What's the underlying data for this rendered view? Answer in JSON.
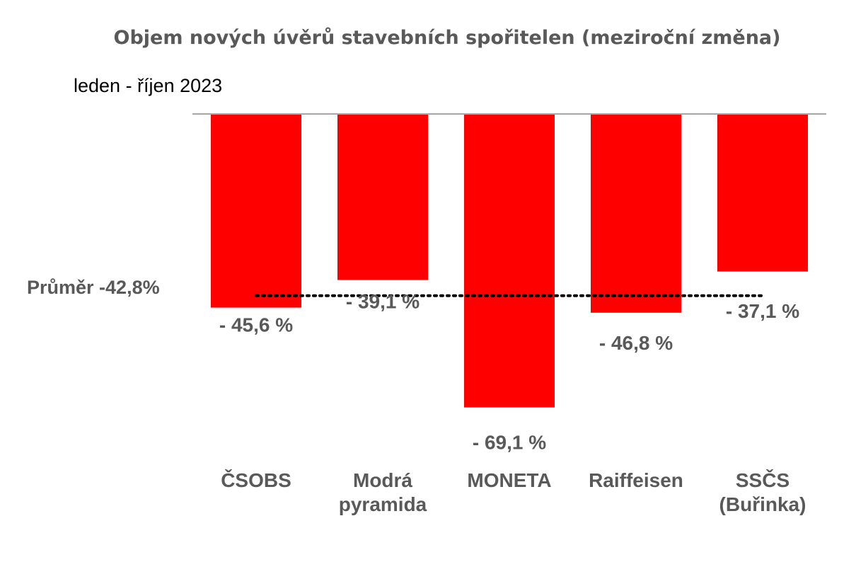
{
  "chart_data": {
    "type": "bar",
    "title": "Objem nových úvěrů stavebních spořitelen (meziroční změna)",
    "subtitle": "leden - říjen 2023",
    "categories": [
      [
        "ČSOBS"
      ],
      [
        "Modrá",
        "pyramida"
      ],
      [
        "MONETA"
      ],
      [
        "Raiffeisen"
      ],
      [
        "SSČS",
        "(Buřinka)"
      ]
    ],
    "values": [
      -45.6,
      -39.1,
      -69.1,
      -46.8,
      -37.1
    ],
    "data_labels": [
      "- 45,6 %",
      "- 39,1 %",
      "- 69,1 %",
      "- 46,8 %",
      "- 37,1 %"
    ],
    "average": {
      "value": -42.8,
      "label": "Průměr -42,8%"
    },
    "ylim": [
      -70,
      0
    ],
    "bar_color": "#ff0000",
    "text_color": "#595959",
    "axis_color": "#a6a6a6",
    "grid": false,
    "legend": false
  }
}
